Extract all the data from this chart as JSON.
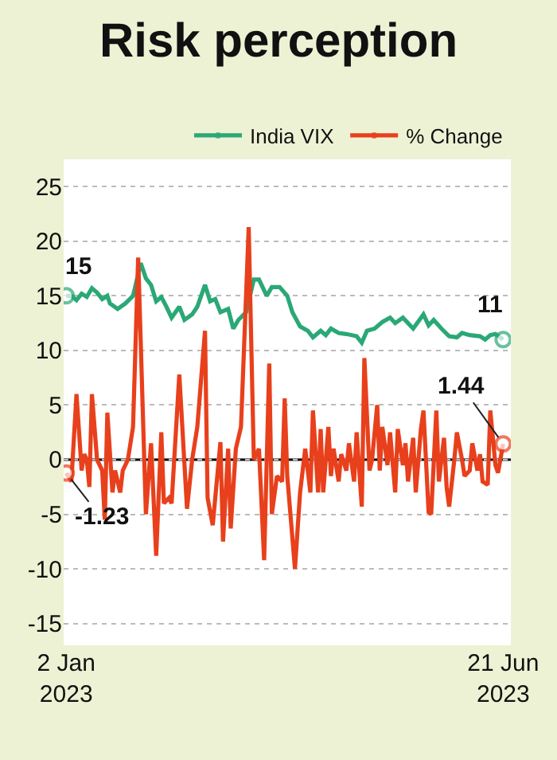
{
  "chart_data": {
    "type": "line",
    "title": "Risk perception",
    "xlim": [
      "2023-01-01",
      "2023-06-24"
    ],
    "xticks": [
      {
        "value": "2023-01-02",
        "label": "2 Jan\n2023"
      },
      {
        "value": "2023-06-21",
        "label": "21 Jun\n2023"
      }
    ],
    "ylim": [
      -17,
      27.5
    ],
    "yticks": [
      -15,
      -10,
      -5,
      0,
      5,
      10,
      15,
      20,
      25
    ],
    "grid": "y",
    "legend": "top right",
    "line_style": "solid",
    "ref_lines": [
      {
        "axis": "y",
        "value": 0,
        "color": "#000000",
        "line_style": "solid"
      }
    ],
    "series": [
      {
        "name": "India VIX",
        "color": "#2aa876",
        "x": [
          "2023-01-02",
          "2023-01-04",
          "2023-01-06",
          "2023-01-08",
          "2023-01-10",
          "2023-01-12",
          "2023-01-14",
          "2023-01-16",
          "2023-01-18",
          "2023-01-19",
          "2023-01-22",
          "2023-01-25",
          "2023-01-28",
          "2023-01-31",
          "2023-02-02",
          "2023-02-04",
          "2023-02-06",
          "2023-02-08",
          "2023-02-10",
          "2023-02-12",
          "2023-02-15",
          "2023-02-17",
          "2023-02-20",
          "2023-02-22",
          "2023-02-25",
          "2023-02-27",
          "2023-03-01",
          "2023-03-03",
          "2023-03-06",
          "2023-03-08",
          "2023-03-10",
          "2023-03-13",
          "2023-03-16",
          "2023-03-18",
          "2023-03-21",
          "2023-03-23",
          "2023-03-26",
          "2023-03-29",
          "2023-03-31",
          "2023-04-03",
          "2023-04-06",
          "2023-04-08",
          "2023-04-11",
          "2023-04-13",
          "2023-04-15",
          "2023-04-18",
          "2023-04-21",
          "2023-04-25",
          "2023-04-27",
          "2023-04-29",
          "2023-05-02",
          "2023-05-05",
          "2023-05-08",
          "2023-05-10",
          "2023-05-13",
          "2023-05-15",
          "2023-05-17",
          "2023-05-21",
          "2023-05-23",
          "2023-05-25",
          "2023-05-28",
          "2023-05-31",
          "2023-06-03",
          "2023-06-05",
          "2023-06-08",
          "2023-06-12",
          "2023-06-14",
          "2023-06-16",
          "2023-06-18",
          "2023-06-21"
        ],
        "values": [
          15,
          15,
          14.6,
          15.2,
          14.9,
          15.7,
          15.3,
          14.7,
          15,
          14.3,
          13.8,
          14.3,
          15,
          18,
          16.6,
          16,
          14.5,
          14.9,
          14,
          13,
          14,
          12.8,
          13.3,
          14,
          16,
          14.5,
          14.7,
          13.5,
          13.8,
          12,
          12.8,
          13.5,
          16.5,
          16.5,
          15,
          15.8,
          15.8,
          15,
          13.5,
          12.2,
          11.8,
          11.2,
          11.8,
          11.4,
          12,
          11.6,
          11.5,
          11.3,
          10.7,
          11.8,
          12,
          12.6,
          13,
          12.5,
          13,
          12.5,
          12,
          13.3,
          12.3,
          12.8,
          12,
          11.3,
          11.2,
          11.6,
          11.4,
          11.3,
          11,
          11.4,
          11.5,
          11
        ]
      },
      {
        "name": "% Change",
        "color": "#e8401c",
        "x": [
          "2023-01-02",
          "2023-01-04",
          "2023-01-06",
          "2023-01-08",
          "2023-01-09",
          "2023-01-10",
          "2023-01-11",
          "2023-01-12",
          "2023-01-14",
          "2023-01-16",
          "2023-01-17",
          "2023-01-18",
          "2023-01-20",
          "2023-01-21",
          "2023-01-23",
          "2023-01-24",
          "2023-01-26",
          "2023-01-28",
          "2023-01-30",
          "2023-02-02",
          "2023-02-04",
          "2023-02-06",
          "2023-02-08",
          "2023-02-09",
          "2023-02-11",
          "2023-02-12",
          "2023-02-15",
          "2023-02-18",
          "2023-02-20",
          "2023-02-22",
          "2023-02-25",
          "2023-02-26",
          "2023-02-28",
          "2023-03-03",
          "2023-03-04",
          "2023-03-06",
          "2023-03-07",
          "2023-03-09",
          "2023-03-11",
          "2023-03-14",
          "2023-03-16",
          "2023-03-18",
          "2023-03-20",
          "2023-03-22",
          "2023-03-23",
          "2023-03-25",
          "2023-03-27",
          "2023-03-28",
          "2023-03-29",
          "2023-04-01",
          "2023-04-03",
          "2023-04-05",
          "2023-04-07",
          "2023-04-08",
          "2023-04-10",
          "2023-04-11",
          "2023-04-12",
          "2023-04-14",
          "2023-04-15",
          "2023-04-16",
          "2023-04-18",
          "2023-04-19",
          "2023-04-21",
          "2023-04-22",
          "2023-04-24",
          "2023-04-25",
          "2023-04-27",
          "2023-04-28",
          "2023-04-30",
          "2023-05-01",
          "2023-05-03",
          "2023-05-04",
          "2023-05-05",
          "2023-05-07",
          "2023-05-08",
          "2023-05-10",
          "2023-05-11",
          "2023-05-13",
          "2023-05-14",
          "2023-05-15",
          "2023-05-17",
          "2023-05-18",
          "2023-05-20",
          "2023-05-21",
          "2023-05-23",
          "2023-05-24",
          "2023-05-26",
          "2023-05-27",
          "2023-05-29",
          "2023-05-30",
          "2023-05-31",
          "2023-06-02",
          "2023-06-03",
          "2023-06-05",
          "2023-06-06",
          "2023-06-08",
          "2023-06-09",
          "2023-06-11",
          "2023-06-12",
          "2023-06-13",
          "2023-06-15",
          "2023-06-16",
          "2023-06-18",
          "2023-06-19",
          "2023-06-21"
        ],
        "values": [
          -1.23,
          -2,
          6,
          -1,
          0.5,
          0,
          -2.5,
          6,
          0,
          -1,
          -5.5,
          4.3,
          -3,
          -1,
          -3,
          -1,
          0,
          3,
          18.5,
          -5,
          1.5,
          -8.8,
          2.5,
          -4,
          -3.5,
          -4,
          7.8,
          -4.5,
          0,
          3,
          11.8,
          -3.5,
          -6,
          1.6,
          -7.5,
          1,
          -6.3,
          1,
          3,
          21.3,
          0,
          1,
          -9.2,
          8.8,
          -5,
          -1.5,
          -2,
          5.6,
          -1.5,
          -10,
          -3,
          1,
          -3,
          4.5,
          -3,
          2.8,
          -3,
          3,
          -1.5,
          1,
          -2,
          0.5,
          -1,
          1.5,
          -2,
          2.5,
          -4.3,
          9.3,
          -1,
          0,
          5,
          -1,
          3,
          -0.5,
          2.5,
          -3,
          2.8,
          -0.5,
          1.5,
          -2,
          2,
          -3,
          2.8,
          4.5,
          -4.8,
          -5,
          4.5,
          -2,
          2,
          -2.5,
          -4.3,
          0,
          2.5,
          0,
          -1.5,
          -1,
          1.5,
          -1,
          0.5,
          -2,
          -2.3,
          4.5,
          -0.5,
          -1.2,
          1.44
        ]
      }
    ],
    "annotations": [
      {
        "text": "15",
        "x": "2023-01-02",
        "y": 15
      },
      {
        "text": "-1.23",
        "x": "2023-01-02",
        "y": -1.23
      },
      {
        "text": "11",
        "x": "2023-06-21",
        "y": 11
      },
      {
        "text": "1.44",
        "x": "2023-06-21",
        "y": 1.44
      }
    ]
  }
}
